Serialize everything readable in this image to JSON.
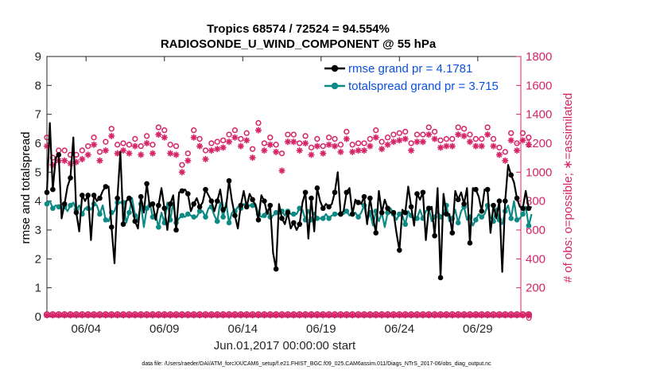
{
  "chart_data": {
    "type": "line",
    "title_line1": "Tropics 68574 / 72524 = 94.554%",
    "title_line2": "RADIOSONDE_U_WIND_COMPONENT @ 55 hPa",
    "xlabel": "Jun.01,2017 00:00:00 start",
    "ylabel_left": "rmse and totalspread",
    "ylabel_right": "# of obs: o=possible; ∗=assimilated",
    "footer": "data file: /Users/raeder/DAI/ATM_forcXX/CAM6_setup/f.e21.FHIST_BGC.f09_025.CAM6assim.011/Diags_NTrS_2017-06/obs_diag_output.nc",
    "xlim": [
      0.5,
      30.75
    ],
    "ylim_left": [
      0,
      9
    ],
    "ylim_right": [
      0,
      1800
    ],
    "x_ticks": [
      3,
      8,
      13,
      18,
      23,
      28
    ],
    "x_tick_labels": [
      "06/04",
      "06/09",
      "06/14",
      "06/19",
      "06/24",
      "06/29"
    ],
    "y_left_ticks": [
      "0",
      "1",
      "2",
      "3",
      "4",
      "5",
      "6",
      "7",
      "8",
      "9"
    ],
    "y_right_ticks": [
      "0",
      "200",
      "400",
      "600",
      "800",
      "1000",
      "1200",
      "1400",
      "1600",
      "1800"
    ],
    "legend": [
      {
        "name": "rmse grand pr = 4.1781",
        "color": "#000000",
        "marker": "circle"
      },
      {
        "name": "totalspread grand pr = 3.715",
        "color": "#0e8a84",
        "marker": "circle"
      }
    ],
    "colors": {
      "rmse": "#000000",
      "spread": "#0e8a84",
      "obs": "#d62467",
      "axis": "#262626"
    },
    "rmse": [
      4.3,
      6.7,
      4.4,
      5.5,
      5.6,
      3.4,
      3.9,
      4.5,
      4.8,
      6.2,
      3.6,
      2.95,
      4.2,
      4.0,
      4.2,
      2.65,
      4.2,
      4.0,
      4.1,
      4.35,
      4.5,
      4.5,
      3.1,
      1.85,
      4.1,
      5.7,
      3.2,
      4.0,
      4.1,
      3.8,
      3.3,
      3.05,
      4.15,
      3.6,
      4.6,
      3.8,
      3.9,
      3.35,
      3.85,
      4.45,
      3.75,
      3.0,
      3.9,
      4.2,
      3.0,
      4.3,
      4.35,
      4.4,
      4.25,
      3.65,
      3.9,
      4.1,
      3.8,
      3.95,
      4.4,
      4.2,
      4.0,
      3.65,
      4.0,
      4.4,
      3.7,
      3.8,
      4.7,
      4.0,
      3.5,
      3.05,
      3.85,
      4.35,
      3.8,
      4.25,
      4.05,
      3.85,
      3.35,
      4.2,
      4.0,
      3.55,
      3.85,
      2.2,
      1.65,
      3.9,
      3.4,
      3.2,
      3.6,
      3.05,
      3.25,
      3.0,
      3.2,
      3.95,
      4.3,
      2.7,
      4.1,
      2.95,
      4.45,
      4.0,
      3.75,
      3.9,
      3.8,
      3.9,
      4.3,
      5.0,
      3.55,
      3.65,
      4.3,
      4.45,
      3.55,
      4.05,
      3.95,
      3.9,
      4.15,
      3.2,
      4.1,
      3.45,
      2.9,
      4.35,
      3.6,
      4.05,
      3.75,
      3.6,
      3.6,
      2.9,
      2.3,
      3.7,
      3.6,
      4.5,
      3.8,
      3.15,
      4.25,
      4.05,
      4.3,
      2.65,
      3.75,
      3.8,
      2.8,
      4.45,
      1.35,
      4.25,
      3.55,
      3.55,
      2.9,
      4.35,
      4.05,
      4.3,
      3.9,
      4.45,
      2.55,
      4.45,
      4.4,
      4.15,
      3.65,
      4.4,
      4.4,
      2.9,
      3.85,
      3.4,
      4.0,
      1.55,
      4.0,
      5.25,
      4.9,
      4.65,
      4.1,
      3.8,
      3.75,
      4.35,
      3.75,
      3.8
    ],
    "spread": [
      3.9,
      4.0,
      3.75,
      3.85,
      3.8,
      3.7,
      3.8,
      3.65,
      3.85,
      3.95,
      3.7,
      3.85,
      3.55,
      3.75,
      3.75,
      3.7,
      3.9,
      3.85,
      3.55,
      3.85,
      3.35,
      3.3,
      3.6,
      3.65,
      3.95,
      3.95,
      3.95,
      3.25,
      3.6,
      4.1,
      3.5,
      3.35,
      3.9,
      3.1,
      3.75,
      3.95,
      3.45,
      3.55,
      3.1,
      3.6,
      3.25,
      3.95,
      3.35,
      3.95,
      3.25,
      3.4,
      3.5,
      3.45,
      3.55,
      3.5,
      3.45,
      3.45,
      3.65,
      3.65,
      3.45,
      3.75,
      3.8,
      3.5,
      3.3,
      3.95,
      3.45,
      3.95,
      3.25,
      3.6,
      3.65,
      3.8,
      3.75,
      3.9,
      3.85,
      3.85,
      3.85,
      3.9,
      3.55,
      3.45,
      3.5,
      3.7,
      3.45,
      3.5,
      3.6,
      3.55,
      3.65,
      3.5,
      3.65,
      3.55,
      3.55,
      3.55,
      3.75,
      3.7,
      3.35,
      3.7,
      3.35,
      3.6,
      3.4,
      3.4,
      3.4,
      3.55,
      3.4,
      3.5,
      3.55,
      3.55,
      3.55,
      3.55,
      3.65,
      3.5,
      3.55,
      3.6,
      3.45,
      3.6,
      3.85,
      3.3,
      3.6,
      3.15,
      3.65,
      3.3,
      3.6,
      3.1,
      3.6,
      3.75,
      3.55,
      3.35,
      3.55,
      3.5,
      3.2,
      3.65,
      3.5,
      3.4,
      3.4,
      3.7,
      3.4,
      3.65,
      3.75,
      3.3,
      3.45,
      3.65,
      3.45,
      3.55,
      3.85,
      3.3,
      3.4,
      3.7,
      3.25,
      3.65,
      3.8,
      3.35,
      3.45,
      3.15,
      3.35,
      3.55,
      3.45,
      3.55,
      3.85,
      3.45,
      3.3,
      3.75,
      3.35,
      3.2,
      3.65,
      3.85,
      3.4,
      4.0,
      3.35,
      3.4,
      3.55,
      3.8,
      3.15,
      3.55,
      3.3
    ],
    "obs_possible": [
      1240,
      1280,
      1100,
      1230,
      1150,
      1140,
      1150,
      1200,
      1120,
      1190,
      1120,
      1240,
      1150,
      1200,
      1180,
      1220,
      1240,
      1210,
      1140,
      1250,
      1210,
      1200,
      1300,
      1240,
      1190,
      1250,
      1200,
      1180,
      1190,
      1280,
      1230,
      1290,
      1180,
      1260,
      1250,
      1210,
      1190,
      1230,
      1310,
      1290,
      1290,
      1240,
      1190,
      1220,
      1180,
      1080,
      1050,
      1110,
      1130,
      1210,
      1290,
      1250,
      1230,
      1220,
      1150,
      1160,
      1200,
      1250,
      1210,
      1170,
      1220,
      1230,
      1260,
      1320,
      1290,
      1200,
      1230,
      1260,
      1270,
      1220,
      1160,
      1220,
      1340,
      1260,
      1200,
      1270,
      1240,
      1190,
      1190,
      1180,
      1130,
      1230,
      1260,
      1130,
      1260,
      1320,
      1200,
      1280,
      1250,
      1250,
      1170,
      1210,
      1230,
      1140,
      1180,
      1230,
      1240,
      1280,
      1230,
      1270,
      1190,
      1170,
      1280,
      1200,
      1190,
      1210,
      1200,
      1290,
      1200,
      1190,
      1230,
      1260,
      1290,
      1200,
      1210,
      1210,
      1240,
      1230,
      1260,
      1310,
      1270,
      1280,
      1280,
      1220,
      1200,
      1250,
      1260,
      1240,
      1260,
      1240,
      1310,
      1270,
      1280,
      1200,
      1220,
      1160,
      1230,
      1210,
      1230,
      1270,
      1310,
      1250,
      1300,
      1220,
      1260,
      1280,
      1230,
      1160,
      1230,
      1260,
      1310,
      1270,
      1230,
      1200,
      1170,
      1240,
      1140,
      1080,
      1270,
      1210,
      1200,
      1240,
      1270,
      1280,
      1240,
      1260
    ],
    "obs_assimilated": [
      1180,
      1200,
      1050,
      1180,
      1080,
      1090,
      1080,
      1150,
      1060,
      1140,
      1070,
      1190,
      1090,
      1150,
      1120,
      1170,
      1190,
      1160,
      1080,
      1200,
      1150,
      1150,
      1250,
      1190,
      1130,
      1200,
      1150,
      1120,
      1130,
      1230,
      1180,
      1240,
      1120,
      1210,
      1200,
      1160,
      1130,
      1180,
      1260,
      1240,
      1240,
      1190,
      1130,
      1170,
      1120,
      1030,
      1000,
      1050,
      1080,
      1160,
      1240,
      1200,
      1180,
      1170,
      1090,
      1110,
      1150,
      1200,
      1160,
      1110,
      1170,
      1180,
      1210,
      1270,
      1240,
      1150,
      1180,
      1210,
      1220,
      1170,
      1100,
      1170,
      1290,
      1210,
      1150,
      1220,
      1190,
      1140,
      1140,
      1130,
      1010,
      1180,
      1210,
      1080,
      1210,
      1270,
      1150,
      1230,
      1200,
      1200,
      1120,
      1160,
      1180,
      1080,
      1130,
      1180,
      1190,
      1230,
      1180,
      1220,
      1140,
      1120,
      1230,
      1150,
      1140,
      1160,
      1150,
      1240,
      1150,
      1140,
      1180,
      1210,
      1240,
      1150,
      1160,
      1160,
      1190,
      1180,
      1210,
      1260,
      1220,
      1230,
      1230,
      1170,
      1150,
      1200,
      1210,
      1190,
      1210,
      1190,
      1260,
      1220,
      1230,
      1150,
      1170,
      1050,
      1180,
      1160,
      1180,
      1220,
      1260,
      1200,
      1250,
      1170,
      1210,
      1230,
      1180,
      1110,
      1180,
      1210,
      1260,
      1220,
      1180,
      1150,
      1120,
      1190,
      1080,
      1030,
      1220,
      1160,
      1150,
      1190,
      1220,
      1230,
      1190,
      1210
    ],
    "obs_bottom_possible": 15,
    "obs_bottom_assimilated": 10,
    "x_step": 0.1875,
    "x_start": 0.5
  }
}
